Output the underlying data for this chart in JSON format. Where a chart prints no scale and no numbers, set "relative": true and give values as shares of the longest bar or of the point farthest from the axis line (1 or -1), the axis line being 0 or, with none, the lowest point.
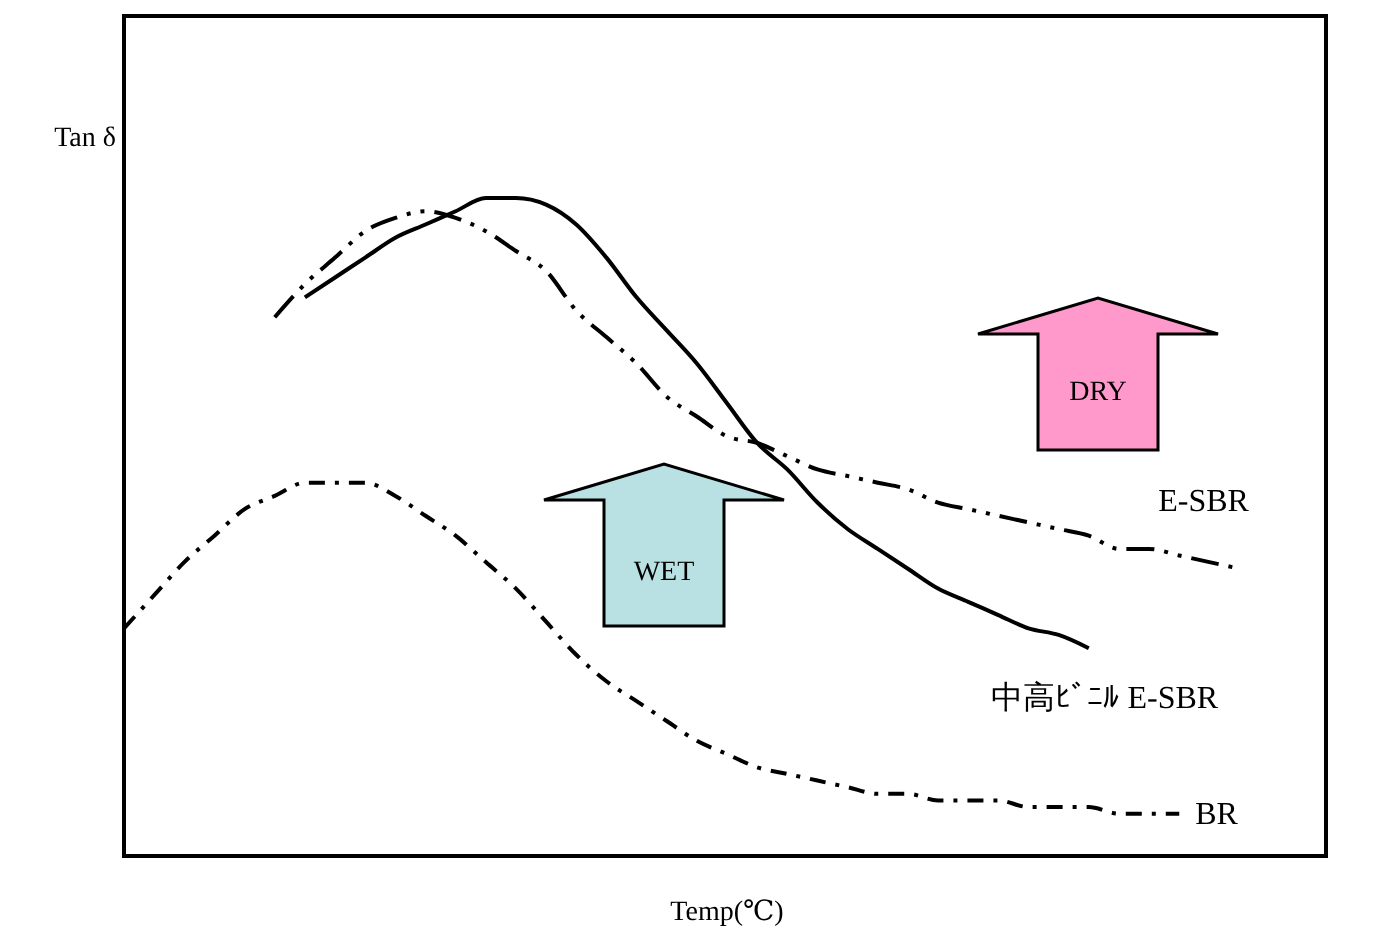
{
  "chart_data": {
    "type": "line",
    "relative": true,
    "xlabel": "Temp(℃)",
    "ylabel": "Tan δ",
    "legend": false,
    "grid": false,
    "marker": "none",
    "annotations": [
      "WET",
      "DRY"
    ],
    "categories": [
      null,
      null,
      null,
      null,
      null,
      null,
      null,
      null,
      null,
      null,
      null,
      null,
      null,
      null,
      null,
      null,
      null,
      null,
      null,
      null,
      null,
      null,
      null,
      null,
      null,
      null,
      null,
      null,
      null,
      null,
      null,
      null,
      null,
      null,
      null,
      null,
      null,
      null,
      null,
      null,
      null
    ],
    "series": [
      {
        "name": "E-SBR",
        "color": "#000000",
        "line_style": "dashed",
        "values": [
          null,
          null,
          null,
          null,
          null,
          0.82,
          0.87,
          0.91,
          0.95,
          0.97,
          0.98,
          0.97,
          0.95,
          0.92,
          0.89,
          0.83,
          0.79,
          0.75,
          0.7,
          0.67,
          0.64,
          0.63,
          0.61,
          0.59,
          0.58,
          0.57,
          0.56,
          0.54,
          0.53,
          0.52,
          0.51,
          0.5,
          0.49,
          0.47,
          0.47,
          0.46,
          0.45,
          0.44,
          null,
          null,
          null
        ]
      },
      {
        "name": "中高ﾋﾞﾆﾙ E-SBR",
        "color": "#000000",
        "line_style": "solid",
        "values": [
          null,
          null,
          null,
          null,
          null,
          null,
          0.85,
          0.88,
          0.91,
          0.94,
          0.96,
          0.98,
          1.0,
          1.0,
          0.99,
          0.96,
          0.91,
          0.85,
          0.8,
          0.75,
          0.69,
          0.63,
          0.59,
          0.54,
          0.5,
          0.47,
          0.44,
          0.41,
          0.39,
          0.37,
          0.35,
          0.34,
          0.32,
          null,
          null,
          null,
          null,
          null,
          null,
          null,
          null
        ]
      },
      {
        "name": "BR",
        "color": "#000000",
        "line_style": "dotted",
        "values": [
          0.35,
          0.4,
          0.45,
          0.49,
          0.53,
          0.55,
          0.57,
          0.57,
          0.57,
          0.55,
          0.52,
          0.49,
          0.45,
          0.41,
          0.36,
          0.31,
          0.27,
          0.24,
          0.21,
          0.18,
          0.16,
          0.14,
          0.13,
          0.12,
          0.11,
          0.1,
          0.1,
          0.09,
          0.09,
          0.09,
          0.08,
          0.08,
          0.08,
          0.07,
          0.07,
          0.07,
          null,
          null,
          null,
          null,
          null
        ]
      }
    ]
  }
}
